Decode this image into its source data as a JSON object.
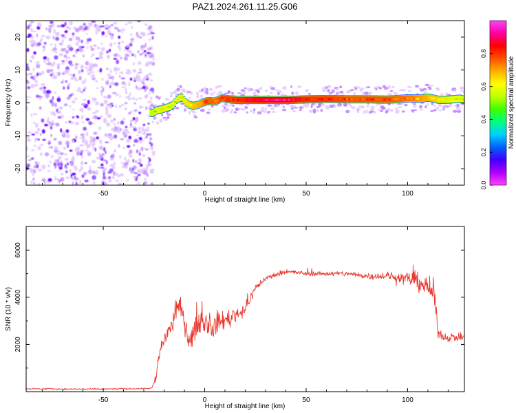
{
  "title": "PAZ1.2024.261.11.25.G06",
  "chart_data": [
    {
      "type": "heatmap",
      "xlabel": "Height of straight line (km)",
      "ylabel": "Frequency (Hz)",
      "xlim": [
        -88,
        128
      ],
      "ylim": [
        -25,
        25
      ],
      "xticks": [
        -50,
        0,
        50,
        100
      ],
      "yticks": [
        -20,
        -10,
        0,
        10,
        20
      ],
      "colorbar": {
        "label": "Normalized spectral amplitude",
        "range": [
          0,
          1
        ],
        "ticks": [
          0.0,
          0.2,
          0.4,
          0.6,
          0.8
        ],
        "colormap": [
          "#ff40ff",
          "#b000ff",
          "#4000ff",
          "#0060ff",
          "#00d0ff",
          "#00ff80",
          "#40ff00",
          "#c0ff00",
          "#ffff00",
          "#ffb000",
          "#ff5000",
          "#ff0000",
          "#ff00a0",
          "#ff40ff"
        ]
      },
      "noise_region": {
        "x_range": [
          -88,
          -27
        ],
        "freq_range": [
          -25,
          25
        ],
        "amplitude_range": [
          0.0,
          0.15
        ]
      },
      "signal_track": {
        "x": [
          -27,
          -26,
          -24,
          -22,
          -20,
          -18,
          -16,
          -14,
          -12,
          -10,
          -8,
          -6,
          -4,
          -2,
          0,
          2,
          4,
          6,
          8,
          10,
          15,
          20,
          30,
          40,
          50,
          60,
          70,
          80,
          90,
          100,
          105,
          110,
          115,
          120,
          125,
          128
        ],
        "freq": [
          -3.0,
          -3.0,
          -2.2,
          -2.0,
          -1.6,
          -1.2,
          -0.5,
          1.2,
          1.8,
          0.2,
          -0.6,
          -0.9,
          -0.6,
          0.0,
          0.4,
          0.6,
          0.4,
          0.8,
          1.5,
          1.2,
          0.9,
          0.9,
          0.9,
          0.9,
          1.1,
          1.2,
          1.1,
          1.1,
          1.0,
          1.4,
          1.3,
          1.6,
          0.9,
          1.0,
          1.3,
          0.9
        ],
        "peak_amplitude": [
          0.45,
          0.45,
          0.6,
          0.6,
          0.6,
          0.55,
          0.55,
          0.6,
          0.6,
          0.6,
          0.65,
          0.7,
          0.7,
          0.75,
          0.85,
          0.85,
          0.8,
          0.85,
          0.85,
          0.9,
          0.9,
          0.95,
          1.0,
          1.0,
          0.9,
          0.9,
          0.85,
          0.85,
          0.85,
          0.8,
          0.75,
          0.7,
          0.65,
          0.6,
          0.55,
          0.55
        ]
      }
    },
    {
      "type": "line",
      "xlabel": "Height of straight line (km)",
      "ylabel": "SNR (10 * v/v)",
      "xlim": [
        -88,
        128
      ],
      "ylim": [
        0,
        7000
      ],
      "xticks": [
        -50,
        0,
        50,
        100
      ],
      "yticks": [
        2000,
        4000,
        6000
      ],
      "series": [
        {
          "color": "#e8382e",
          "x": [
            -88,
            -80,
            -70,
            -60,
            -50,
            -40,
            -30,
            -26,
            -24,
            -22,
            -20,
            -18,
            -16,
            -14,
            -12,
            -10,
            -8,
            -6,
            -4,
            -2,
            0,
            4,
            8,
            12,
            16,
            20,
            25,
            30,
            40,
            50,
            60,
            70,
            80,
            90,
            100,
            105,
            110,
            113,
            115,
            118,
            120,
            125,
            128
          ],
          "y": [
            120,
            120,
            110,
            110,
            110,
            120,
            130,
            150,
            600,
            1800,
            2200,
            2600,
            2800,
            3400,
            3600,
            3000,
            2200,
            2300,
            2800,
            3000,
            3000,
            2700,
            3000,
            3100,
            3300,
            3500,
            4400,
            4800,
            5100,
            5000,
            5000,
            5000,
            4900,
            4900,
            4800,
            4700,
            4400,
            4200,
            2500,
            2300,
            2300,
            2300,
            2300
          ],
          "noise_amplitude": [
            40,
            40,
            40,
            40,
            40,
            40,
            40,
            60,
            300,
            700,
            600,
            600,
            700,
            600,
            600,
            600,
            600,
            700,
            700,
            700,
            700,
            700,
            600,
            600,
            500,
            400,
            250,
            180,
            150,
            150,
            150,
            170,
            200,
            250,
            400,
            600,
            700,
            800,
            300,
            250,
            250,
            250,
            250
          ]
        }
      ]
    }
  ]
}
